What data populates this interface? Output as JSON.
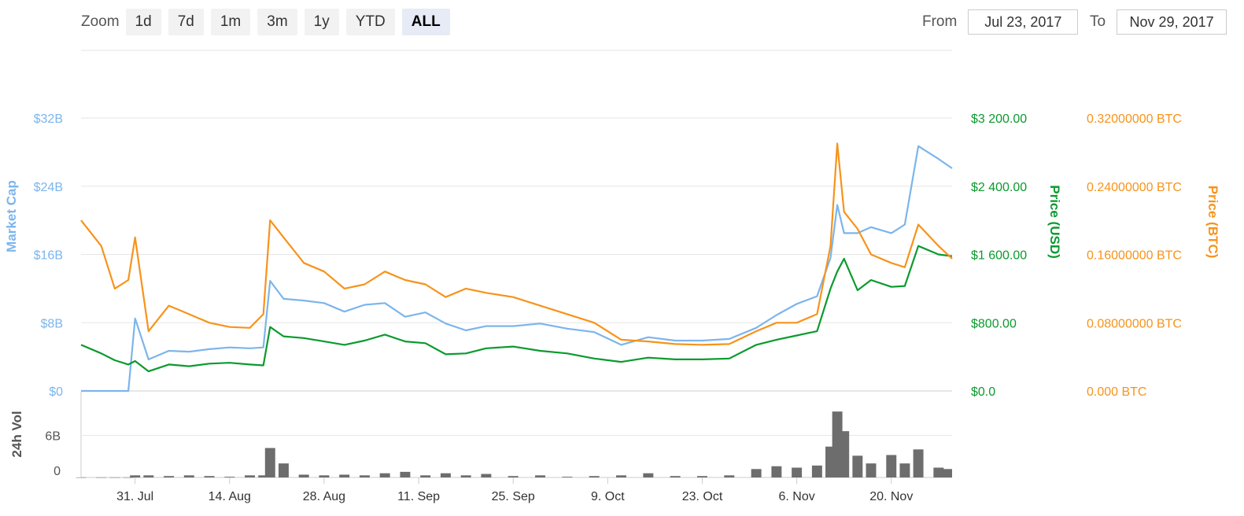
{
  "toolbar": {
    "zoom_label": "Zoom",
    "zoom_buttons": [
      "1d",
      "7d",
      "1m",
      "3m",
      "1y",
      "YTD",
      "ALL"
    ],
    "active_zoom": "ALL",
    "from_label": "From",
    "from_value": "Jul 23, 2017",
    "to_label": "To",
    "to_value": "Nov 29, 2017"
  },
  "colors": {
    "market_cap": "#7cb5ec",
    "price_usd": "#0b9a2e",
    "price_btc": "#f7931a",
    "volume": "#6d6d6d",
    "grid": "#e6e6e6"
  },
  "chart_data": {
    "type": "line",
    "x_ticks": [
      "31. Jul",
      "14. Aug",
      "28. Aug",
      "11. Sep",
      "25. Sep",
      "9. Oct",
      "23. Oct",
      "6. Nov",
      "20. Nov"
    ],
    "x": [
      "2017-07-23",
      "2017-07-26",
      "2017-07-28",
      "2017-07-30",
      "2017-07-31",
      "2017-08-02",
      "2017-08-05",
      "2017-08-08",
      "2017-08-11",
      "2017-08-14",
      "2017-08-17",
      "2017-08-19",
      "2017-08-20",
      "2017-08-22",
      "2017-08-25",
      "2017-08-28",
      "2017-08-31",
      "2017-09-03",
      "2017-09-06",
      "2017-09-09",
      "2017-09-12",
      "2017-09-15",
      "2017-09-18",
      "2017-09-21",
      "2017-09-25",
      "2017-09-29",
      "2017-10-03",
      "2017-10-07",
      "2017-10-11",
      "2017-10-15",
      "2017-10-19",
      "2017-10-23",
      "2017-10-27",
      "2017-10-31",
      "2017-11-03",
      "2017-11-06",
      "2017-11-09",
      "2017-11-11",
      "2017-11-12",
      "2017-11-13",
      "2017-11-15",
      "2017-11-17",
      "2017-11-20",
      "2017-11-22",
      "2017-11-24",
      "2017-11-27",
      "2017-11-29"
    ],
    "series": [
      {
        "name": "Market Cap",
        "axis": "Market Cap",
        "values": [
          0,
          0,
          0,
          0,
          8.5,
          3.7,
          4.7,
          4.6,
          4.9,
          5.1,
          5.0,
          5.1,
          12.9,
          10.8,
          10.6,
          10.3,
          9.3,
          10.1,
          10.3,
          8.7,
          9.2,
          7.9,
          7.1,
          7.6,
          7.6,
          7.9,
          7.3,
          6.9,
          5.4,
          6.3,
          5.9,
          5.9,
          6.1,
          7.4,
          8.9,
          10.2,
          11.1,
          15.6,
          21.8,
          18.5,
          18.5,
          19.2,
          18.5,
          19.5,
          28.7,
          27.2,
          26.1
        ]
      },
      {
        "name": "Price (USD)",
        "axis": "Price (USD)",
        "values": [
          540,
          440,
          360,
          310,
          350,
          230,
          310,
          290,
          320,
          330,
          310,
          300,
          750,
          640,
          620,
          580,
          540,
          590,
          660,
          580,
          560,
          430,
          440,
          500,
          520,
          470,
          440,
          380,
          340,
          390,
          370,
          370,
          380,
          540,
          600,
          650,
          700,
          1200,
          1400,
          1550,
          1180,
          1300,
          1220,
          1230,
          1700,
          1600,
          1580
        ]
      },
      {
        "name": "Price (BTC)",
        "axis": "Price (BTC)",
        "values": [
          0.2,
          0.17,
          0.12,
          0.13,
          0.18,
          0.07,
          0.1,
          0.09,
          0.08,
          0.075,
          0.074,
          0.09,
          0.2,
          0.18,
          0.15,
          0.14,
          0.12,
          0.125,
          0.14,
          0.13,
          0.125,
          0.11,
          0.12,
          0.115,
          0.11,
          0.1,
          0.09,
          0.08,
          0.06,
          0.058,
          0.055,
          0.054,
          0.055,
          0.07,
          0.08,
          0.08,
          0.09,
          0.17,
          0.29,
          0.21,
          0.19,
          0.16,
          0.15,
          0.145,
          0.195,
          0.17,
          0.155
        ]
      }
    ],
    "volume": {
      "name": "24h Vol",
      "values": [
        0.01,
        0.01,
        0.01,
        0.01,
        0.3,
        0.3,
        0.2,
        0.3,
        0.2,
        0.1,
        0.3,
        0.3,
        4.2,
        2.0,
        0.4,
        0.3,
        0.4,
        0.3,
        0.6,
        0.8,
        0.3,
        0.6,
        0.3,
        0.5,
        0.2,
        0.3,
        0.1,
        0.2,
        0.3,
        0.6,
        0.2,
        0.2,
        0.3,
        1.2,
        1.6,
        1.4,
        1.7,
        4.4,
        9.4,
        6.6,
        3.1,
        2.0,
        3.2,
        2.0,
        4.0,
        1.4,
        1.2
      ]
    },
    "axes": {
      "market_cap": {
        "title": "Market Cap",
        "ticks": [
          "$0",
          "$8B",
          "$16B",
          "$24B",
          "$32B"
        ],
        "ylim": [
          0,
          32
        ]
      },
      "price_usd": {
        "title": "Price (USD)",
        "ticks": [
          "$0.0",
          "$800.00",
          "$1 600.00",
          "$2 400.00",
          "$3 200.00"
        ],
        "ylim": [
          0,
          3200
        ]
      },
      "price_btc": {
        "title": "Price (BTC)",
        "ticks": [
          "0.000 BTC",
          "0.08000000 BTC",
          "0.16000000 BTC",
          "0.24000000 BTC",
          "0.32000000 BTC"
        ],
        "ylim": [
          0,
          0.32
        ]
      },
      "volume": {
        "title": "24h Vol",
        "ticks": [
          "0",
          "6B"
        ],
        "ylim": [
          0,
          12
        ]
      }
    },
    "grid": true,
    "legend": "none"
  }
}
